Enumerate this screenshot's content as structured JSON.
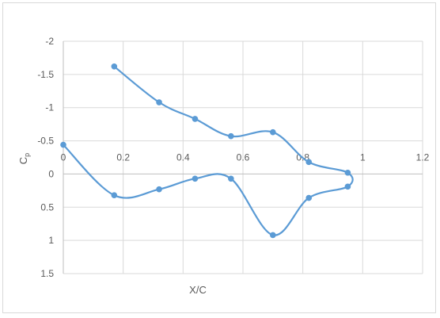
{
  "chart_data": {
    "type": "scatter",
    "title": "",
    "xlabel": "X/C",
    "ylabel": "Cp",
    "ylabel_main": "C",
    "ylabel_sub": "p",
    "xlim": [
      0,
      1.2
    ],
    "ylim": [
      -2,
      1.5
    ],
    "y_inverted": true,
    "grid": true,
    "x_ticks": [
      0,
      0.2,
      0.4,
      0.6,
      0.8,
      1,
      1.2
    ],
    "x_tick_labels": [
      "0",
      "0.2",
      "0.4",
      "0.6",
      "0.8",
      "1",
      "1.2"
    ],
    "y_ticks": [
      -2,
      -1.5,
      -1,
      -0.5,
      0,
      0.5,
      1,
      1.5
    ],
    "y_tick_labels": [
      "-2",
      "-1.5",
      "-1",
      "-0.5",
      "0",
      "0.5",
      "1",
      "1.5"
    ],
    "series": [
      {
        "color": "#5b9bd5",
        "points": [
          [
            0.17,
            -1.62
          ],
          [
            0.32,
            -1.08
          ],
          [
            0.44,
            -0.83
          ],
          [
            0.56,
            -0.57
          ],
          [
            0.7,
            -0.63
          ],
          [
            0.82,
            -0.18
          ],
          [
            0.95,
            -0.02
          ],
          [
            0.95,
            0.19
          ],
          [
            0.82,
            0.36
          ],
          [
            0.7,
            0.92
          ],
          [
            0.56,
            0.07
          ],
          [
            0.44,
            0.07
          ],
          [
            0.32,
            0.23
          ],
          [
            0.17,
            0.32
          ],
          [
            0.0,
            -0.44
          ]
        ]
      }
    ]
  }
}
